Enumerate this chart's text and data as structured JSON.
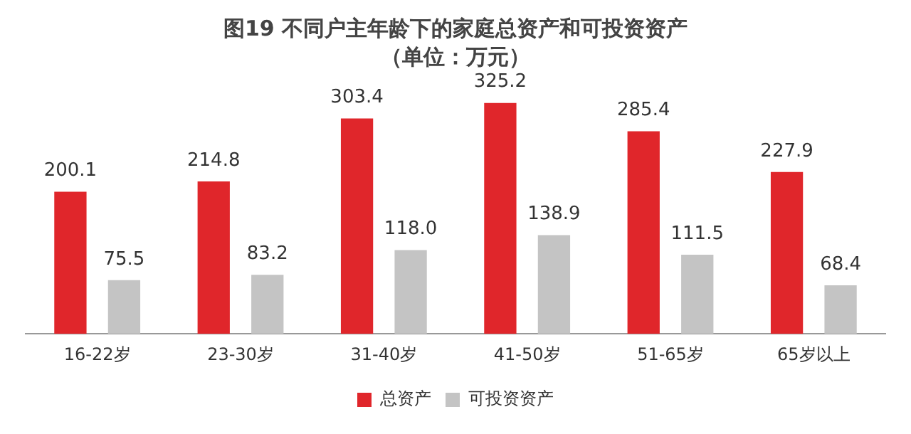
{
  "chart_data": {
    "type": "bar",
    "title": "图19 不同户主年龄下的家庭总资产和可投资资产",
    "subtitle": "（单位：万元）",
    "categories": [
      "16-22岁",
      "23-30岁",
      "31-40岁",
      "41-50岁",
      "51-65岁",
      "65岁以上"
    ],
    "series": [
      {
        "name": "总资产",
        "color": "#e0262b",
        "values": [
          200.1,
          214.8,
          303.4,
          325.2,
          285.4,
          227.9
        ],
        "value_labels": [
          "200.1",
          "214.8",
          "303.4",
          "325.2",
          "285.4",
          "227.9"
        ]
      },
      {
        "name": "可投资资产",
        "color": "#c4c4c4",
        "values": [
          75.5,
          83.2,
          118.0,
          138.9,
          111.5,
          68.4
        ],
        "value_labels": [
          "75.5",
          "83.2",
          "118.0",
          "138.9",
          "111.5",
          "68.4"
        ]
      }
    ],
    "legend": "bottom",
    "tick_labels": "x"
  }
}
